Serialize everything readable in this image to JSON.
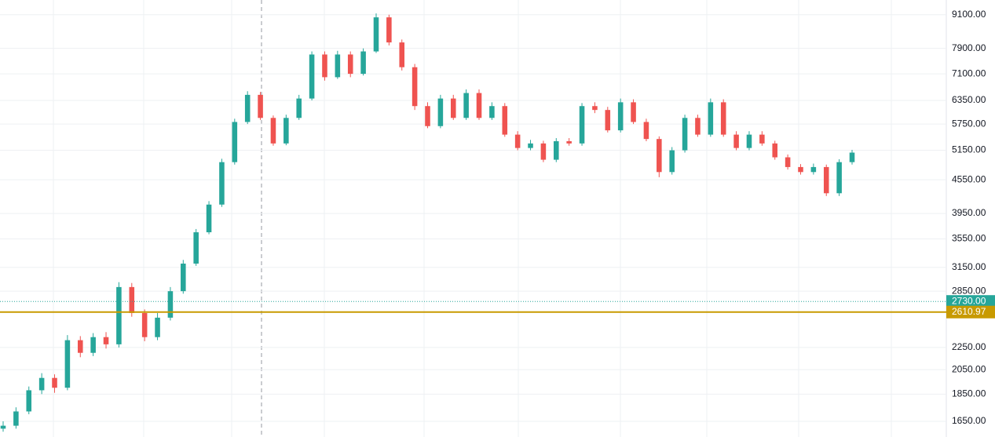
{
  "chart_data": {
    "type": "candlestick",
    "log_scale": true,
    "grid": true,
    "up_color": "#26a69a",
    "down_color": "#ef5350",
    "ylim": [
      1545,
      9680
    ],
    "yticks": [
      {
        "value": 9100,
        "label": "9100.00"
      },
      {
        "value": 7900,
        "label": "7900.00"
      },
      {
        "value": 7100,
        "label": "7100.00"
      },
      {
        "value": 6350,
        "label": "6350.00"
      },
      {
        "value": 5750,
        "label": "5750.00"
      },
      {
        "value": 5150,
        "label": "5150.00"
      },
      {
        "value": 4550,
        "label": "4550.00"
      },
      {
        "value": 3950,
        "label": "3950.00"
      },
      {
        "value": 3550,
        "label": "3550.00"
      },
      {
        "value": 3150,
        "label": "3150.00"
      },
      {
        "value": 2850,
        "label": "2850.00"
      },
      {
        "value": 2250,
        "label": "2250.00"
      },
      {
        "value": 2050,
        "label": "2050.00"
      },
      {
        "value": 1850,
        "label": "1850.00"
      },
      {
        "value": 1650,
        "label": "1650.00"
      }
    ],
    "open": [
      1600,
      1620,
      1720,
      1880,
      1980,
      1900,
      2320,
      2200,
      2350,
      2280,
      2900,
      2600,
      2350,
      2550,
      2850,
      3200,
      3650,
      4100,
      4900,
      5800,
      6500,
      5900,
      5300,
      5900,
      6400,
      7700,
      7000,
      7700,
      7100,
      7800,
      9000,
      8100,
      7300,
      6200,
      5700,
      6400,
      5900,
      6550,
      5900,
      6200,
      5500,
      5200,
      5300,
      4950,
      5350,
      5300,
      6200,
      6100,
      5600,
      6300,
      5800,
      5400,
      4700,
      5150,
      5900,
      5500,
      6300,
      5500,
      5200,
      5500,
      5300,
      5000,
      4800,
      4700,
      4800,
      4300,
      4900
    ],
    "high": [
      1650,
      1750,
      1910,
      2020,
      2010,
      2370,
      2360,
      2390,
      2400,
      2960,
      2950,
      2640,
      2600,
      2900,
      3250,
      3700,
      4160,
      4970,
      5880,
      6600,
      6580,
      5960,
      5980,
      6500,
      7800,
      7800,
      7820,
      7800,
      7900,
      9150,
      9100,
      8200,
      7400,
      6300,
      6500,
      6500,
      6650,
      6650,
      6300,
      6280,
      5580,
      5380,
      5360,
      5420,
      5420,
      6280,
      6300,
      6180,
      6400,
      6380,
      5880,
      5460,
      5220,
      5980,
      5980,
      6400,
      6380,
      5580,
      5580,
      5580,
      5360,
      5060,
      4860,
      4870,
      4850,
      4960,
      5160
    ],
    "low": [
      1580,
      1600,
      1700,
      1850,
      1860,
      1880,
      2160,
      2170,
      2240,
      2250,
      2560,
      2310,
      2320,
      2520,
      2820,
      3170,
      3620,
      4060,
      4850,
      5750,
      5850,
      5250,
      5260,
      5850,
      6350,
      6900,
      6950,
      7000,
      7050,
      7750,
      8000,
      7200,
      6100,
      5650,
      5650,
      5850,
      5850,
      5850,
      5850,
      5450,
      5150,
      5150,
      4900,
      4900,
      5250,
      5250,
      6020,
      5550,
      5550,
      5750,
      5350,
      4600,
      4650,
      5100,
      5450,
      5450,
      5450,
      5150,
      5150,
      5250,
      4950,
      4750,
      4650,
      4650,
      4250,
      4250,
      4850
    ],
    "close": [
      1620,
      1720,
      1880,
      1980,
      1900,
      2320,
      2200,
      2350,
      2280,
      2900,
      2600,
      2350,
      2550,
      2850,
      3200,
      3650,
      4100,
      4900,
      5800,
      6500,
      5900,
      5300,
      5900,
      6400,
      7700,
      7000,
      7700,
      7100,
      7800,
      9000,
      8100,
      7300,
      6200,
      5700,
      6400,
      5900,
      6550,
      5900,
      6200,
      5500,
      5200,
      5300,
      4950,
      5350,
      5300,
      6200,
      6100,
      5600,
      6300,
      5800,
      5400,
      4700,
      5150,
      5900,
      5500,
      6300,
      5500,
      5200,
      5500,
      5300,
      5000,
      4800,
      4700,
      4800,
      4300,
      4900,
      5100
    ],
    "price_lines": [
      {
        "value": 2730,
        "label": "2730.00",
        "color": "#26a69a",
        "style": "dotted"
      },
      {
        "value": 2610.97,
        "label": "2610.97",
        "color": "#c89a00",
        "style": "solid"
      }
    ]
  }
}
